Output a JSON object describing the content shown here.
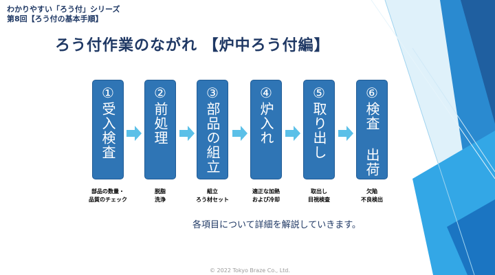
{
  "series": {
    "line1": "わかりやすい「ろう付」シリーズ",
    "line2": "第8回【ろう付の基本手順】"
  },
  "title": "ろう付作業のながれ 【炉中ろう付編】",
  "steps": [
    {
      "label": "①受入検査",
      "caption": [
        "部品の数量・",
        "品質のチェック"
      ]
    },
    {
      "label": "②前処理",
      "caption": [
        "脱脂",
        "洗浄"
      ]
    },
    {
      "label": "③部品の組立",
      "caption": [
        "組立",
        "ろう材セット"
      ]
    },
    {
      "label": "④炉入れ",
      "caption": [
        "適正な加熱",
        "および冷却"
      ]
    },
    {
      "label": "⑤取り出し",
      "caption": [
        "取出し",
        "目視検査"
      ]
    },
    {
      "label": "⑥検査 出荷",
      "caption": [
        "欠陥",
        "不良検出"
      ]
    }
  ],
  "note": "各項目について詳細を解説していきます。",
  "copyright": "© 2022 Tokyo Braze Co., Ltd.",
  "colors": {
    "step_fill": "#2f75b5",
    "arrow_fill": "#5bc0e8",
    "title": "#1f3864"
  }
}
